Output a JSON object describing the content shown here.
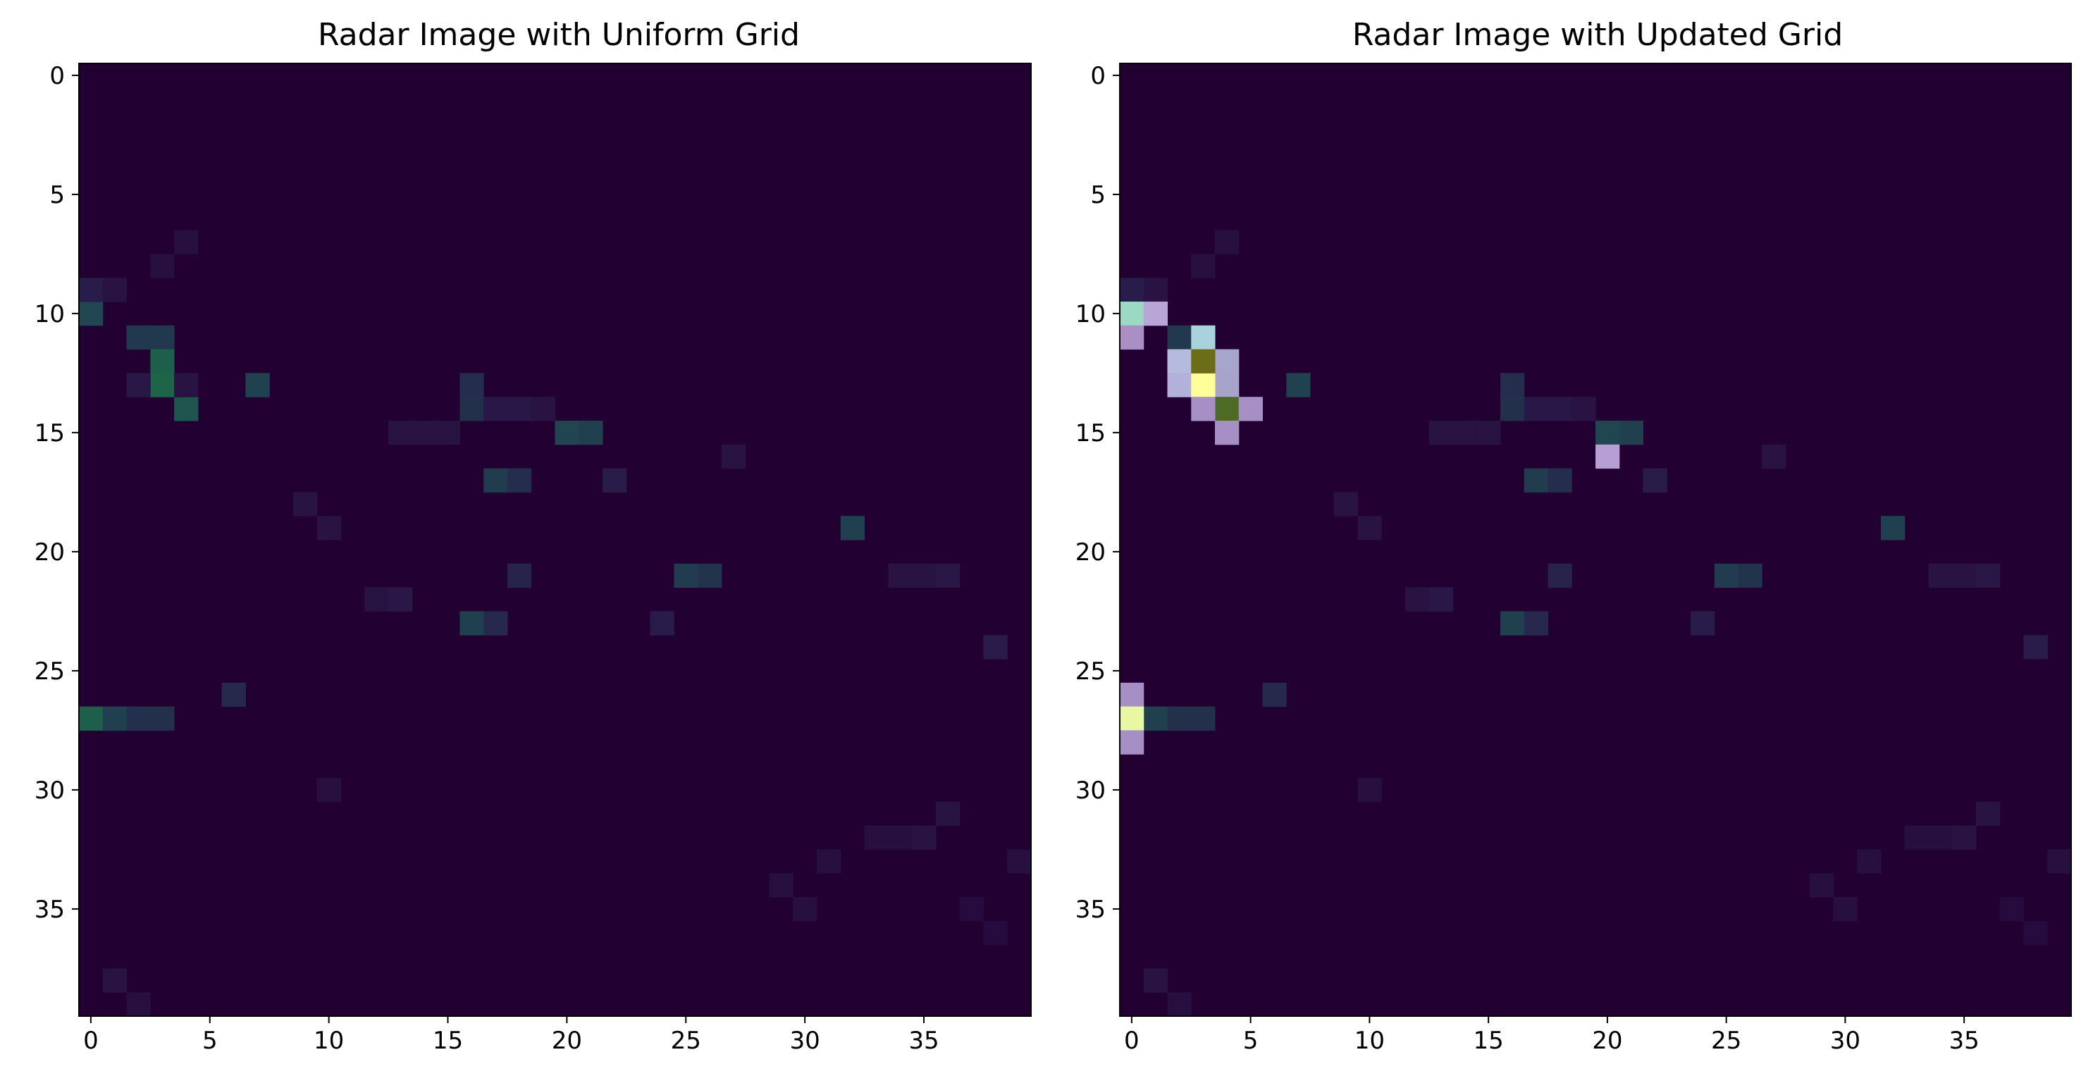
{
  "chart_data": [
    {
      "type": "heatmap",
      "title": "Radar Image with Uniform Grid",
      "xlabel": "",
      "ylabel": "",
      "x_ticks": [
        0,
        5,
        10,
        15,
        20,
        25,
        30,
        35
      ],
      "y_ticks": [
        0,
        5,
        10,
        15,
        20,
        25,
        30,
        35
      ],
      "xlim": [
        -0.5,
        39.5
      ],
      "ylim": [
        39.5,
        -0.5
      ],
      "grid": false,
      "colormap": "viridis-like (dark purple background)",
      "background_color": "#220032",
      "grid_size": [
        40,
        40
      ],
      "cells": [
        [
          0,
          10,
          0.45
        ],
        [
          0,
          27,
          0.62
        ],
        [
          1,
          27,
          0.4
        ],
        [
          2,
          27,
          0.3
        ],
        [
          3,
          27,
          0.3
        ],
        [
          2,
          11,
          0.35
        ],
        [
          3,
          11,
          0.35
        ],
        [
          3,
          12,
          0.62
        ],
        [
          3,
          13,
          0.65
        ],
        [
          4,
          14,
          0.55
        ],
        [
          7,
          13,
          0.42
        ],
        [
          16,
          13,
          0.28
        ],
        [
          16,
          14,
          0.3
        ],
        [
          17,
          17,
          0.38
        ],
        [
          18,
          17,
          0.28
        ],
        [
          20,
          15,
          0.45
        ],
        [
          21,
          15,
          0.4
        ],
        [
          25,
          21,
          0.38
        ],
        [
          26,
          21,
          0.32
        ],
        [
          16,
          23,
          0.4
        ],
        [
          17,
          23,
          0.25
        ],
        [
          32,
          19,
          0.4
        ],
        [
          6,
          26,
          0.25
        ],
        [
          24,
          23,
          0.18
        ],
        [
          38,
          24,
          0.18
        ],
        [
          0,
          9,
          0.18
        ],
        [
          1,
          9,
          0.12
        ],
        [
          2,
          13,
          0.15
        ],
        [
          4,
          13,
          0.12
        ],
        [
          3,
          8,
          0.1
        ],
        [
          4,
          7,
          0.1
        ],
        [
          9,
          18,
          0.12
        ],
        [
          10,
          19,
          0.12
        ],
        [
          12,
          22,
          0.12
        ],
        [
          13,
          22,
          0.15
        ],
        [
          18,
          21,
          0.22
        ],
        [
          22,
          17,
          0.18
        ],
        [
          27,
          16,
          0.12
        ],
        [
          34,
          21,
          0.12
        ],
        [
          35,
          21,
          0.12
        ],
        [
          36,
          21,
          0.15
        ],
        [
          1,
          38,
          0.12
        ],
        [
          2,
          39,
          0.1
        ],
        [
          10,
          30,
          0.1
        ],
        [
          17,
          14,
          0.15
        ],
        [
          18,
          14,
          0.15
        ],
        [
          19,
          14,
          0.12
        ],
        [
          13,
          15,
          0.12
        ],
        [
          14,
          15,
          0.12
        ],
        [
          15,
          15,
          0.12
        ],
        [
          35,
          32,
          0.12
        ],
        [
          36,
          31,
          0.12
        ],
        [
          34,
          32,
          0.1
        ],
        [
          33,
          32,
          0.1
        ],
        [
          39,
          33,
          0.1
        ],
        [
          30,
          35,
          0.1
        ],
        [
          29,
          34,
          0.1
        ],
        [
          31,
          33,
          0.1
        ],
        [
          38,
          36,
          0.08
        ],
        [
          37,
          35,
          0.08
        ]
      ]
    },
    {
      "type": "heatmap",
      "title": "Radar Image with Updated Grid",
      "xlabel": "",
      "ylabel": "",
      "x_ticks": [
        0,
        5,
        10,
        15,
        20,
        25,
        30,
        35
      ],
      "y_ticks": [
        0,
        5,
        10,
        15,
        20,
        25,
        30,
        35
      ],
      "xlim": [
        -0.5,
        39.5
      ],
      "ylim": [
        39.5,
        -0.5
      ],
      "grid": false,
      "colormap": "viridis-like (dark purple background) with grid overlay",
      "background_color": "#220032",
      "grid_size": [
        40,
        40
      ],
      "cells": [
        [
          0,
          10,
          0.45
        ],
        [
          0,
          27,
          0.62
        ],
        [
          1,
          27,
          0.4
        ],
        [
          2,
          27,
          0.3
        ],
        [
          3,
          27,
          0.3
        ],
        [
          2,
          11,
          0.35
        ],
        [
          3,
          11,
          0.35
        ],
        [
          3,
          12,
          0.62
        ],
        [
          3,
          13,
          0.65
        ],
        [
          4,
          14,
          0.55
        ],
        [
          7,
          13,
          0.42
        ],
        [
          16,
          13,
          0.28
        ],
        [
          16,
          14,
          0.3
        ],
        [
          17,
          17,
          0.38
        ],
        [
          18,
          17,
          0.28
        ],
        [
          20,
          15,
          0.45
        ],
        [
          21,
          15,
          0.4
        ],
        [
          25,
          21,
          0.38
        ],
        [
          26,
          21,
          0.32
        ],
        [
          16,
          23,
          0.4
        ],
        [
          17,
          23,
          0.25
        ],
        [
          32,
          19,
          0.4
        ],
        [
          6,
          26,
          0.25
        ],
        [
          24,
          23,
          0.18
        ],
        [
          38,
          24,
          0.18
        ],
        [
          0,
          9,
          0.18
        ],
        [
          1,
          9,
          0.12
        ],
        [
          2,
          13,
          0.15
        ],
        [
          4,
          13,
          0.12
        ],
        [
          3,
          8,
          0.1
        ],
        [
          4,
          7,
          0.1
        ],
        [
          9,
          18,
          0.12
        ],
        [
          10,
          19,
          0.12
        ],
        [
          12,
          22,
          0.12
        ],
        [
          13,
          22,
          0.15
        ],
        [
          18,
          21,
          0.22
        ],
        [
          22,
          17,
          0.18
        ],
        [
          27,
          16,
          0.12
        ],
        [
          34,
          21,
          0.12
        ],
        [
          35,
          21,
          0.12
        ],
        [
          36,
          21,
          0.15
        ],
        [
          1,
          38,
          0.12
        ],
        [
          2,
          39,
          0.1
        ],
        [
          10,
          30,
          0.1
        ],
        [
          17,
          14,
          0.15
        ],
        [
          18,
          14,
          0.15
        ],
        [
          19,
          14,
          0.12
        ],
        [
          13,
          15,
          0.12
        ],
        [
          14,
          15,
          0.12
        ],
        [
          15,
          15,
          0.12
        ],
        [
          35,
          32,
          0.12
        ],
        [
          36,
          31,
          0.12
        ],
        [
          34,
          32,
          0.1
        ],
        [
          33,
          32,
          0.1
        ],
        [
          39,
          33,
          0.1
        ],
        [
          30,
          35,
          0.1
        ],
        [
          29,
          34,
          0.1
        ],
        [
          31,
          33,
          0.1
        ],
        [
          38,
          36,
          0.08
        ],
        [
          37,
          35,
          0.08
        ]
      ],
      "overlay_cells": [
        [
          0,
          10,
          "#9bd9c4"
        ],
        [
          1,
          10,
          "#b9a6d6"
        ],
        [
          0,
          11,
          "#a98fc6"
        ],
        [
          3,
          11,
          "#a9d2dd"
        ],
        [
          2,
          12,
          "#b4bbdd"
        ],
        [
          4,
          12,
          "#a8a5cd"
        ],
        [
          2,
          13,
          "#b4b0dc"
        ],
        [
          4,
          13,
          "#a7a3cb"
        ],
        [
          3,
          13,
          "#ffff99"
        ],
        [
          3,
          12,
          "#6b6d17"
        ],
        [
          4,
          14,
          "#4e6b25"
        ],
        [
          3,
          14,
          "#a58fc5"
        ],
        [
          5,
          14,
          "#a58fc5"
        ],
        [
          4,
          15,
          "#a58fc5"
        ],
        [
          20,
          16,
          "#b59fd3"
        ],
        [
          0,
          26,
          "#a58fc5"
        ],
        [
          0,
          27,
          "#e9f7a4"
        ],
        [
          0,
          28,
          "#a58fc5"
        ]
      ]
    }
  ]
}
